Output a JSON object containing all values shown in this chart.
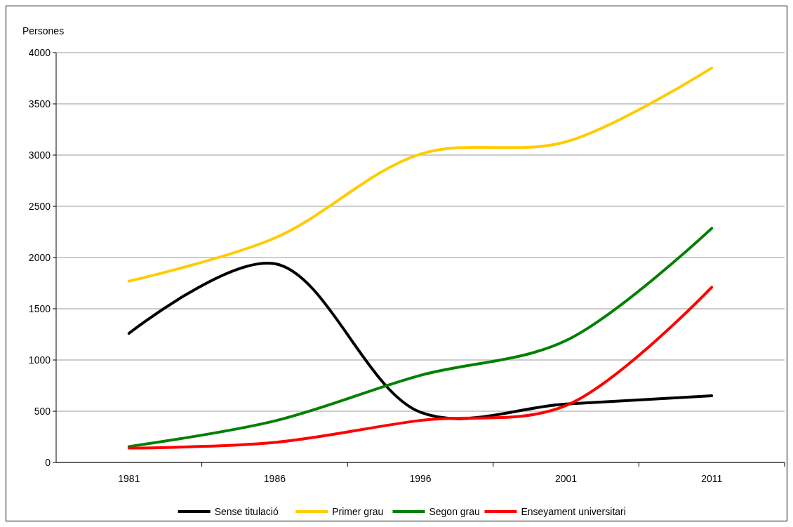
{
  "chart_data": {
    "type": "line",
    "ylabel": "Persones",
    "categories": [
      "1981",
      "1986",
      "1996",
      "2001",
      "2011"
    ],
    "series": [
      {
        "name": "Sense titulació",
        "color": "#000000",
        "values": [
          1260,
          1940,
          490,
          570,
          650
        ]
      },
      {
        "name": "Primer grau",
        "color": "#ffcc00",
        "values": [
          1770,
          2190,
          3010,
          3130,
          3850
        ]
      },
      {
        "name": "Segon grau",
        "color": "#008000",
        "values": [
          155,
          405,
          850,
          1190,
          2285
        ]
      },
      {
        "name": "Enseyament universitari",
        "color": "#ff0000",
        "values": [
          140,
          195,
          410,
          555,
          1710
        ]
      }
    ],
    "ylim": [
      0,
      4000
    ],
    "yticks": [
      0,
      500,
      1000,
      1500,
      2000,
      2500,
      3000,
      3500,
      4000
    ],
    "grid": "y",
    "legend": "bottom",
    "marker": "none",
    "line_style": "solid"
  }
}
